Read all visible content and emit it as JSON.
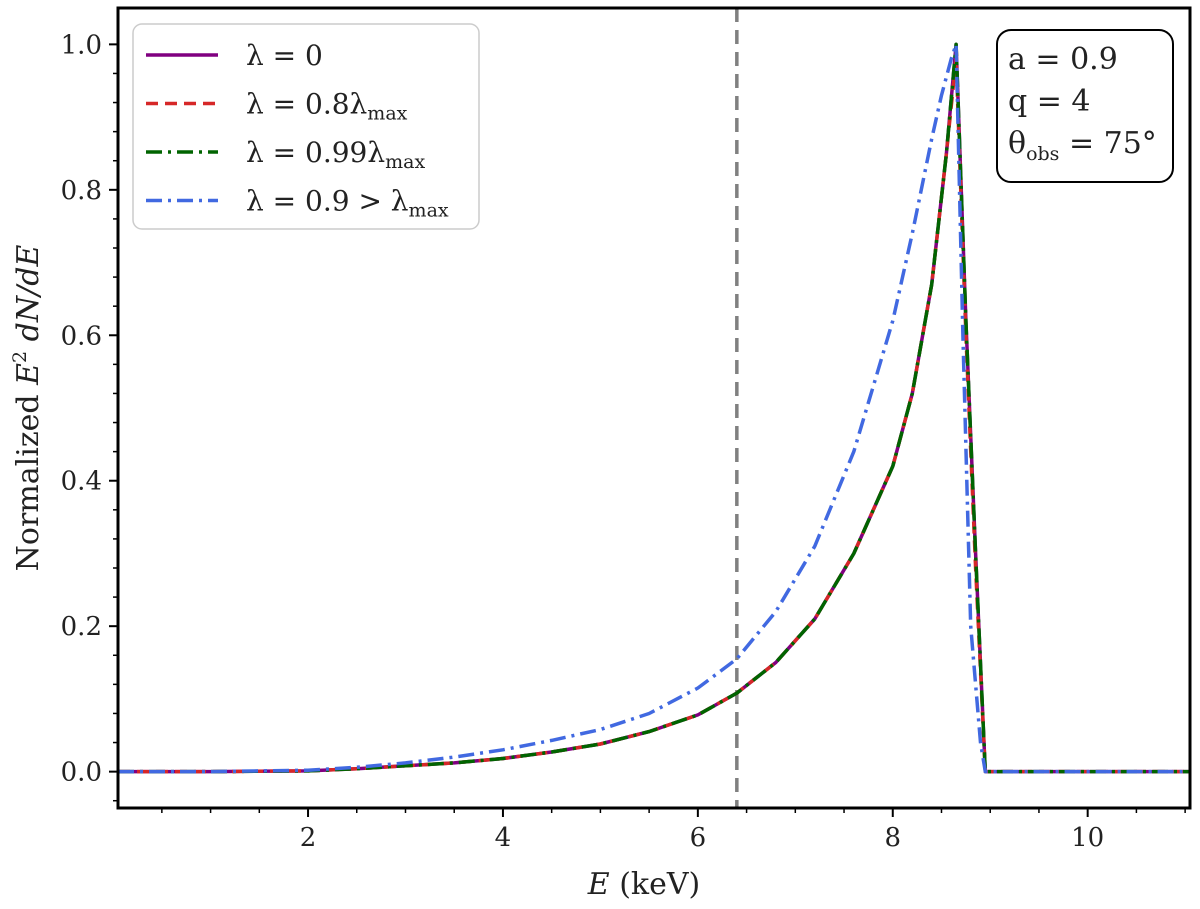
{
  "chart_data": {
    "type": "line",
    "xlabel": {
      "var": "E",
      "unit": " (keV)"
    },
    "ylabel": {
      "prefix": "Normalized ",
      "var": "E",
      "sup": "2",
      "suffix": " dN/dE"
    },
    "xlim": [
      0.05,
      11.05
    ],
    "ylim": [
      -0.05,
      1.05
    ],
    "x_ticks": [
      2,
      4,
      6,
      8,
      10
    ],
    "x_tick_labels": [
      "2",
      "4",
      "6",
      "8",
      "10"
    ],
    "y_ticks": [
      0.0,
      0.2,
      0.4,
      0.6,
      0.8,
      1.0
    ],
    "y_tick_labels": [
      "0.0",
      "0.2",
      "0.4",
      "0.6",
      "0.8",
      "1.0"
    ],
    "grid": false,
    "legend_position": "top-left",
    "reference_line": {
      "x": 6.4,
      "color": "#808080",
      "style": "dashed"
    },
    "info_box": {
      "position": "top-right",
      "lines": [
        {
          "main": "a = 0.9"
        },
        {
          "main": "q = 4"
        },
        {
          "main": "θ",
          "sub": "obs",
          "tail": " = 75°"
        }
      ]
    },
    "series": [
      {
        "name": "λ = 0",
        "legend": {
          "main": "λ = 0"
        },
        "color": "#800080",
        "style": "solid",
        "x": [
          0.05,
          1.0,
          2.0,
          2.5,
          3.0,
          3.5,
          4.0,
          4.5,
          5.0,
          5.5,
          6.0,
          6.4,
          6.8,
          7.2,
          7.6,
          8.0,
          8.2,
          8.4,
          8.55,
          8.65,
          8.75,
          8.85,
          8.95,
          9.5,
          10.0,
          11.05
        ],
        "y": [
          0.0,
          0.0,
          0.001,
          0.004,
          0.008,
          0.012,
          0.018,
          0.027,
          0.038,
          0.055,
          0.078,
          0.108,
          0.15,
          0.21,
          0.3,
          0.42,
          0.52,
          0.67,
          0.85,
          1.0,
          0.62,
          0.3,
          0.0,
          0.0,
          0.0,
          0.0
        ]
      },
      {
        "name": "λ = 0.8λmax",
        "legend": {
          "main": "λ = 0.8λ",
          "sub": "max"
        },
        "color": "#d62728",
        "style": "dashed",
        "x": [
          0.05,
          1.0,
          2.0,
          2.5,
          3.0,
          3.5,
          4.0,
          4.5,
          5.0,
          5.5,
          6.0,
          6.4,
          6.8,
          7.2,
          7.6,
          8.0,
          8.2,
          8.4,
          8.55,
          8.65,
          8.75,
          8.85,
          8.95,
          9.5,
          10.0,
          11.05
        ],
        "y": [
          0.0,
          0.0,
          0.001,
          0.004,
          0.008,
          0.012,
          0.018,
          0.027,
          0.038,
          0.055,
          0.078,
          0.108,
          0.15,
          0.21,
          0.3,
          0.42,
          0.52,
          0.67,
          0.85,
          0.98,
          0.6,
          0.28,
          0.0,
          0.0,
          0.0,
          0.0
        ]
      },
      {
        "name": "λ = 0.99λmax",
        "legend": {
          "main": "λ = 0.99λ",
          "sub": "max"
        },
        "color": "#006400",
        "style": "dashdot",
        "x": [
          0.05,
          1.0,
          2.0,
          2.5,
          3.0,
          3.5,
          4.0,
          4.5,
          5.0,
          5.5,
          6.0,
          6.4,
          6.8,
          7.2,
          7.6,
          8.0,
          8.2,
          8.4,
          8.55,
          8.65,
          8.75,
          8.85,
          8.95,
          9.5,
          10.0,
          11.05
        ],
        "y": [
          0.0,
          0.0,
          0.001,
          0.004,
          0.008,
          0.012,
          0.018,
          0.027,
          0.038,
          0.055,
          0.078,
          0.108,
          0.15,
          0.21,
          0.3,
          0.42,
          0.52,
          0.67,
          0.85,
          1.0,
          0.62,
          0.3,
          0.0,
          0.0,
          0.0,
          0.0
        ]
      },
      {
        "name": "λ = 0.9 > λmax",
        "legend": {
          "main": "λ = 0.9 > λ",
          "sub": "max"
        },
        "color": "#4169e1",
        "style": "dashdot",
        "x": [
          0.05,
          1.0,
          2.0,
          2.5,
          3.0,
          3.5,
          4.0,
          4.5,
          5.0,
          5.5,
          6.0,
          6.4,
          6.8,
          7.2,
          7.6,
          8.0,
          8.2,
          8.4,
          8.5,
          8.6,
          8.65,
          8.72,
          8.8,
          8.9,
          8.95,
          9.5,
          10.0,
          11.05
        ],
        "y": [
          0.0,
          0.0,
          0.002,
          0.006,
          0.012,
          0.02,
          0.03,
          0.043,
          0.058,
          0.08,
          0.115,
          0.155,
          0.22,
          0.31,
          0.44,
          0.62,
          0.74,
          0.87,
          0.93,
          0.98,
          1.0,
          0.6,
          0.2,
          0.04,
          0.0,
          0.0,
          0.0,
          0.0
        ]
      }
    ]
  }
}
